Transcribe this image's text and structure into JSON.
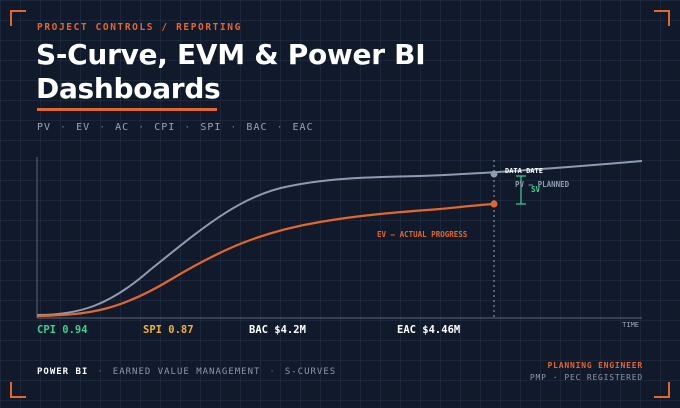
{
  "header": {
    "kicker": "PROJECT CONTROLS / REPORTING",
    "title": "S-Curve, EVM & Power BI Dashboards"
  },
  "tags": [
    "PV",
    "EV",
    "AC",
    "CPI",
    "SPI",
    "BAC",
    "EAC"
  ],
  "chart": {
    "data_date_label": "DATA DATE",
    "pv_label": "PV — PLANNED",
    "sv_label": "SV",
    "ev_label": "EV — ACTUAL PROGRESS",
    "x_axis_label": "TIME"
  },
  "metrics": {
    "cpi": "CPI 0.94",
    "spi": "SPI 0.87",
    "bac": "BAC $4.2M",
    "eac": "EAC $4.46M"
  },
  "footer": {
    "items": [
      "POWER BI",
      "EARNED VALUE MANAGEMENT",
      "S-CURVES"
    ],
    "role": "PLANNING ENGINEER",
    "credentials": [
      "PMP",
      "PEC REGISTERED"
    ]
  },
  "colors": {
    "background": "#111a2b",
    "accent": "#e2672f",
    "pv_line": "#8e9bb0",
    "cpi": "#3fd08f",
    "spi": "#f0b03a"
  }
}
